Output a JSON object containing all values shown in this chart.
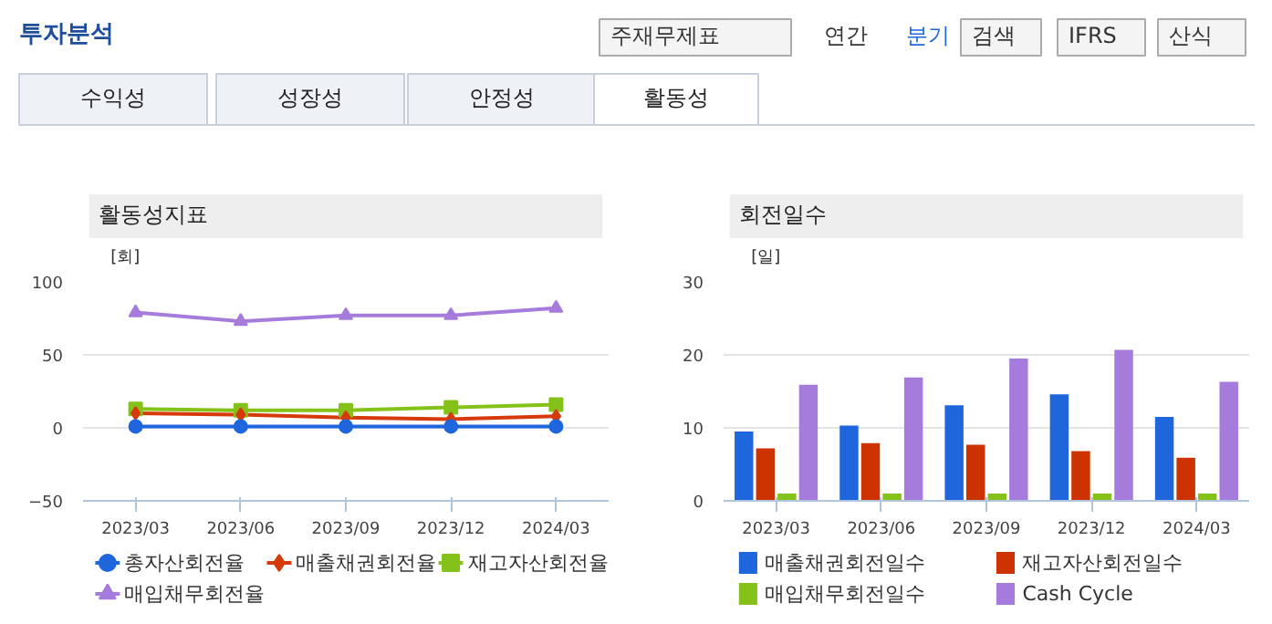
{
  "chart_data": [
    {
      "type": "other",
      "title": "투자분석",
      "annotations": [
        "주재무제표",
        "연간",
        "분기",
        "검색",
        "IFRS",
        "산식",
        "수익성",
        "성장성",
        "안정성",
        "활동성"
      ]
    },
    {
      "type": "line",
      "title": "활동성지표",
      "ylabel": "[회]",
      "categories": [
        "2023/03",
        "2023/06",
        "2023/09",
        "2023/12",
        "2024/03"
      ],
      "ylim": [
        -50,
        100
      ],
      "yticks": [
        -50,
        0,
        50,
        100
      ],
      "grid": "y",
      "legend": "bottom",
      "series": [
        {
          "name": "총자산회전율",
          "color": "#1f66dd",
          "marker": "circle",
          "values": [
            1,
            1,
            1,
            1,
            1
          ]
        },
        {
          "name": "매출채권회전율",
          "color": "#d63a0a",
          "marker": "diamond",
          "values": [
            10,
            9,
            7,
            6,
            8
          ]
        },
        {
          "name": "재고자산회전율",
          "color": "#84c21a",
          "marker": "square",
          "values": [
            13,
            12,
            12,
            14,
            16
          ]
        },
        {
          "name": "매입채무회전율",
          "color": "#a57bdc",
          "marker": "triangle",
          "values": [
            79,
            73,
            77,
            77,
            82
          ]
        }
      ]
    },
    {
      "type": "bar",
      "title": "회전일수",
      "ylabel": "[일]",
      "categories": [
        "2023/03",
        "2023/06",
        "2023/09",
        "2023/12",
        "2024/03"
      ],
      "ylim": [
        0,
        30
      ],
      "yticks": [
        0,
        10,
        20,
        30
      ],
      "grid": "y",
      "legend": "bottom",
      "series": [
        {
          "name": "매출채권회전일수",
          "color": "#1f66dd",
          "values": [
            9.5,
            10.3,
            13.1,
            14.6,
            11.5
          ]
        },
        {
          "name": "재고자산회전일수",
          "color": "#cc3300",
          "values": [
            7.2,
            7.9,
            7.7,
            6.8,
            5.9
          ]
        },
        {
          "name": "매입채무회전일수",
          "color": "#84c21a",
          "values": [
            1,
            1,
            1,
            1,
            1
          ]
        },
        {
          "name": "Cash Cycle",
          "color": "#a57bdc",
          "values": [
            15.9,
            16.9,
            19.5,
            20.7,
            16.3
          ]
        }
      ]
    }
  ]
}
